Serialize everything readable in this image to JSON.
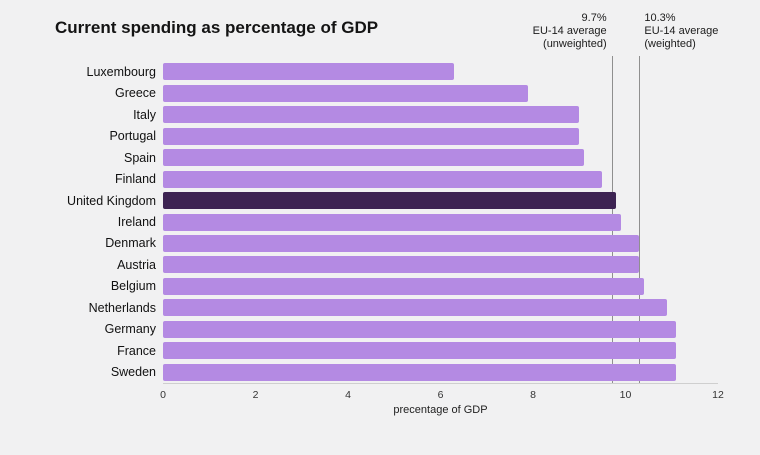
{
  "title": "Current spending as percentage of GDP",
  "chart_data": {
    "type": "bar",
    "orientation": "horizontal",
    "title": "Current spending as percentage of GDP",
    "categories": [
      "Luxembourg",
      "Greece",
      "Italy",
      "Portugal",
      "Spain",
      "Finland",
      "United Kingdom",
      "Ireland",
      "Denmark",
      "Austria",
      "Belgium",
      "Netherlands",
      "Germany",
      "France",
      "Sweden"
    ],
    "values": [
      6.3,
      7.9,
      9.0,
      9.0,
      9.1,
      9.5,
      9.8,
      9.9,
      10.3,
      10.3,
      10.4,
      10.9,
      11.1,
      11.1,
      11.1
    ],
    "highlight_category": "United Kingdom",
    "xlabel": "precentage of GDP",
    "ylabel": "",
    "xlim": [
      0,
      12
    ],
    "xticks": [
      0,
      2,
      4,
      6,
      8,
      10,
      12
    ],
    "grid": false,
    "bar_color": "#b48ae3",
    "highlight_color": "#3d2352",
    "reference_lines": [
      {
        "value": 9.7,
        "align": "right",
        "label_lines": [
          "9.7%",
          "EU-14 average",
          "(unweighted)"
        ]
      },
      {
        "value": 10.3,
        "align": "left",
        "label_lines": [
          "10.3%",
          "EU-14 average",
          "(weighted)"
        ]
      }
    ]
  }
}
